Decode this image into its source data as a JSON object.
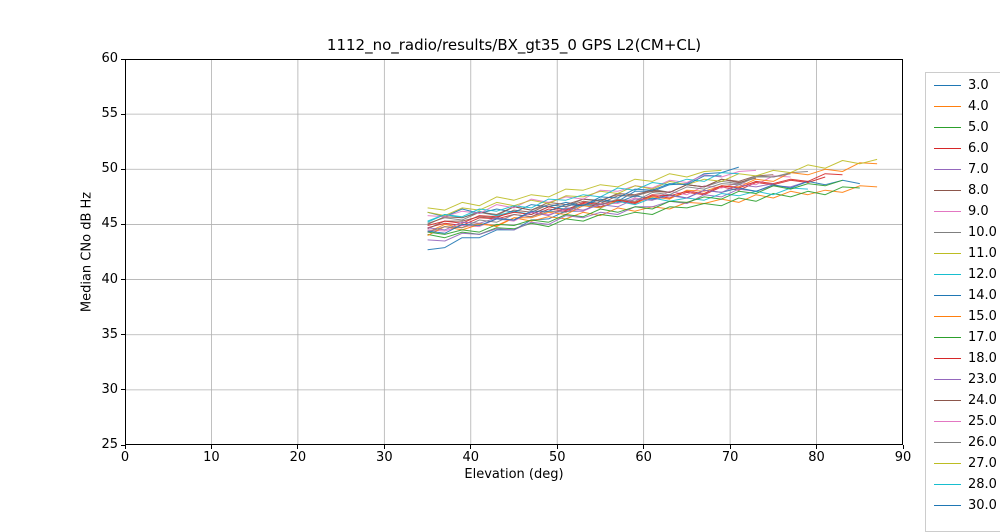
{
  "chart_data": {
    "type": "line",
    "title": "1112_no_radio/results/BX_gt35_0 GPS L2(CM+CL)",
    "xlabel": "Elevation (deg)",
    "ylabel": "Median CNo dB Hz",
    "xlim": [
      0,
      90
    ],
    "ylim": [
      25,
      60
    ],
    "xticks": [
      0,
      10,
      20,
      30,
      40,
      50,
      60,
      70,
      80,
      90
    ],
    "yticks": [
      25,
      30,
      35,
      40,
      45,
      50,
      55,
      60
    ],
    "grid": true,
    "grid_color": "#b0b0b0",
    "spine_color": "#000000",
    "background_color": "#ffffff",
    "legend_position": "outside-right",
    "legend_border_color": "#cccccc",
    "series": [
      {
        "label": "3.0",
        "color": "#1f77b4",
        "x0": 35,
        "dx": 2,
        "values": [
          42.7,
          42.9,
          43.8,
          43.8,
          44.5,
          44.5,
          45.4,
          45.5,
          46.2,
          46.2,
          47.1,
          47.1,
          48.0,
          48.0,
          48.6,
          48.7,
          49.6,
          49.7,
          50.2
        ]
      },
      {
        "label": "4.0",
        "color": "#ff7f0e",
        "x0": 35,
        "dx": 2,
        "values": [
          44.3,
          45.0,
          44.7,
          45.1,
          44.8,
          45.6,
          45.3,
          45.7,
          45.5,
          46.1,
          45.8,
          46.5,
          46.2,
          46.6,
          46.4,
          47.0,
          46.9,
          47.3,
          47.0,
          47.7,
          47.4,
          48.0,
          47.7,
          48.1,
          47.9,
          48.5,
          48.4
        ]
      },
      {
        "label": "5.0",
        "color": "#2ca02c",
        "x0": 35,
        "dx": 2,
        "values": [
          44.1,
          43.8,
          44.3,
          44.1,
          44.7,
          44.6,
          45.1,
          44.8,
          45.5,
          45.3,
          45.9,
          45.7,
          46.1,
          45.9,
          46.6,
          46.5,
          46.9,
          46.7,
          47.4,
          47.1,
          47.8,
          47.5,
          48.0,
          47.7,
          48.4,
          48.3
        ]
      },
      {
        "label": "6.0",
        "color": "#d62728",
        "x0": 35,
        "dx": 2,
        "values": [
          44.7,
          45.1,
          44.9,
          45.6,
          45.5,
          45.9,
          45.7,
          46.4,
          46.2,
          46.9,
          46.6,
          47.1,
          46.9,
          47.6,
          47.4,
          47.9,
          47.7,
          48.4,
          48.1,
          48.8,
          48.6,
          49.0,
          48.8,
          49.3
        ]
      },
      {
        "label": "7.0",
        "color": "#9467bd",
        "x0": 35,
        "dx": 2,
        "values": [
          43.6,
          43.5,
          44.2,
          44.1,
          44.6,
          44.5,
          45.2,
          45.0,
          45.8,
          45.6,
          46.1,
          45.9,
          46.6,
          46.6,
          47.1,
          46.9,
          47.7,
          47.5,
          48.2,
          48.0,
          48.5,
          48.4,
          48.9
        ]
      },
      {
        "label": "8.0",
        "color": "#8c564b",
        "x0": 35,
        "dx": 2,
        "values": [
          44.6,
          45.3,
          45.3,
          45.7,
          45.6,
          46.3,
          46.1,
          46.8,
          46.6,
          47.1,
          46.9,
          47.6,
          47.6,
          48.0,
          47.9,
          48.6,
          48.4,
          49.1,
          48.9,
          49.4,
          49.5
        ]
      },
      {
        "label": "9.0",
        "color": "#e377c2",
        "x0": 35,
        "dx": 2,
        "values": [
          44.5,
          44.4,
          44.9,
          44.8,
          45.5,
          45.3,
          46.1,
          45.9,
          46.3,
          46.2,
          46.9,
          46.9,
          47.4,
          47.2,
          48.0,
          47.7,
          48.5,
          48.3,
          48.8,
          48.6,
          49.4,
          49.3
        ]
      },
      {
        "label": "10.0",
        "color": "#7f7f7f",
        "x0": 35,
        "dx": 2,
        "values": [
          45.1,
          45.6,
          45.4,
          46.1,
          45.8,
          46.6,
          46.3,
          46.8,
          46.6,
          47.3,
          47.2,
          47.7,
          47.5,
          48.2,
          47.9,
          48.6,
          48.4,
          48.9,
          48.7,
          49.4,
          49.3,
          49.7,
          49.8
        ]
      },
      {
        "label": "11.0",
        "color": "#bcbd22",
        "x0": 35,
        "dx": 2,
        "values": [
          46.5,
          46.3,
          47.0,
          46.7,
          47.5,
          47.2,
          47.7,
          47.5,
          48.2,
          48.1,
          48.6,
          48.4,
          49.1,
          48.9,
          49.6,
          49.3,
          49.8,
          49.9
        ]
      },
      {
        "label": "12.0",
        "color": "#17becf",
        "x0": 35,
        "dx": 2,
        "values": [
          45.3,
          45.9,
          45.6,
          46.2,
          45.8,
          46.2,
          45.9,
          46.6,
          46.4,
          46.8,
          46.5,
          47.1,
          46.8,
          47.4,
          47.1,
          47.4,
          47.2,
          47.8,
          47.6,
          48.0,
          47.7,
          48.3,
          48.2
        ]
      },
      {
        "label": "14.0",
        "color": "#1f77b4",
        "x0": 35,
        "dx": 2,
        "values": [
          46.1,
          45.7,
          46.4,
          46.0,
          46.4,
          46.1,
          46.8,
          46.6,
          47.0,
          46.7,
          47.3,
          47.0,
          47.6,
          47.3,
          47.7,
          47.4,
          48.1,
          47.9,
          48.3,
          48.0,
          48.6,
          48.3,
          48.9,
          48.6,
          49.0,
          48.7
        ]
      },
      {
        "label": "15.0",
        "color": "#ff7f0e",
        "x0": 35,
        "dx": 2,
        "values": [
          44.0,
          44.8,
          44.5,
          45.0,
          44.9,
          45.6,
          45.6,
          46.1,
          45.9,
          46.7,
          46.5,
          47.2,
          47.0,
          47.5,
          47.3,
          48.1,
          48.0,
          48.5,
          48.4,
          49.1,
          48.9,
          49.7,
          49.5,
          50.0,
          49.8,
          50.6,
          50.5
        ]
      },
      {
        "label": "17.0",
        "color": "#2ca02c",
        "x0": 35,
        "dx": 2,
        "values": [
          44.3,
          44.1,
          44.5,
          44.3,
          45.0,
          44.9,
          45.4,
          45.2,
          45.9,
          45.7,
          46.4,
          46.1,
          46.6,
          46.4,
          47.1,
          47.0,
          47.5,
          47.3,
          48.0,
          47.8,
          48.5,
          48.2,
          48.7,
          48.5,
          49.0
        ]
      },
      {
        "label": "18.0",
        "color": "#d62728",
        "x0": 35,
        "dx": 2,
        "values": [
          44.9,
          45.3,
          45.1,
          45.8,
          45.7,
          46.1,
          45.9,
          46.6,
          46.3,
          47.0,
          46.8,
          47.2,
          47.0,
          47.7,
          47.6,
          48.0,
          47.8,
          48.5,
          48.3,
          48.9,
          48.7,
          49.1,
          48.9,
          49.6,
          49.5
        ]
      },
      {
        "label": "23.0",
        "color": "#9467bd",
        "x0": 35,
        "dx": 2,
        "values": [
          44.7,
          44.5,
          45.2,
          45.1,
          45.6,
          45.4,
          46.1,
          45.8,
          46.5,
          46.3,
          46.8,
          46.6,
          47.3,
          47.2,
          47.6,
          47.4,
          48.1,
          47.9,
          48.6,
          48.4,
          48.7
        ]
      },
      {
        "label": "24.0",
        "color": "#8c564b",
        "x0": 35,
        "dx": 2,
        "values": [
          45.0,
          45.7,
          45.6,
          46.1,
          45.9,
          46.6,
          46.3,
          47.0,
          46.8,
          47.3,
          47.1,
          47.8,
          47.7,
          48.1,
          47.9,
          48.6,
          48.4,
          49.1,
          48.8,
          49.2
        ]
      },
      {
        "label": "25.0",
        "color": "#e377c2",
        "x0": 35,
        "dx": 2,
        "values": [
          45.8,
          45.7,
          46.2,
          46.0,
          46.8,
          46.5,
          47.3,
          47.0,
          47.5,
          47.3,
          48.1,
          48.0,
          48.5,
          48.3,
          49.0,
          48.8,
          49.5,
          49.3,
          49.8,
          49.9
        ]
      },
      {
        "label": "26.0",
        "color": "#7f7f7f",
        "x0": 35,
        "dx": 2,
        "values": [
          44.3,
          44.8,
          44.7,
          45.4,
          45.2,
          45.9,
          45.7,
          46.2,
          46.1,
          46.8,
          46.8,
          47.3,
          47.1,
          47.9,
          47.7,
          48.4,
          48.2,
          48.7,
          48.6,
          49.3,
          49.3,
          49.6
        ]
      },
      {
        "label": "27.0",
        "color": "#bcbd22",
        "x0": 35,
        "dx": 2,
        "values": [
          46.1,
          45.8,
          46.5,
          46.3,
          47.0,
          46.7,
          47.2,
          46.9,
          47.6,
          47.5,
          48.0,
          47.8,
          48.5,
          48.2,
          48.9,
          48.6,
          49.1,
          48.9,
          49.6,
          49.4,
          49.9,
          49.7,
          50.4,
          50.1,
          50.8,
          50.5,
          50.9
        ]
      },
      {
        "label": "28.0",
        "color": "#17becf",
        "x0": 35,
        "dx": 2,
        "values": [
          45.2,
          45.9,
          45.7,
          46.4,
          46.2,
          46.7,
          46.5,
          47.3,
          47.2,
          47.7,
          47.5,
          48.3,
          48.1,
          48.8,
          48.6,
          49.1,
          48.9,
          49.7,
          49.6
        ]
      },
      {
        "label": "30.0",
        "color": "#1f77b4",
        "x0": 35,
        "dx": 2,
        "values": [
          44.4,
          44.2,
          45.0,
          44.9,
          45.5,
          45.4,
          46.2,
          46.2,
          46.8,
          46.7,
          47.5,
          47.4,
          48.2,
          48.1,
          48.7,
          48.6,
          49.4,
          49.4
        ]
      }
    ]
  }
}
